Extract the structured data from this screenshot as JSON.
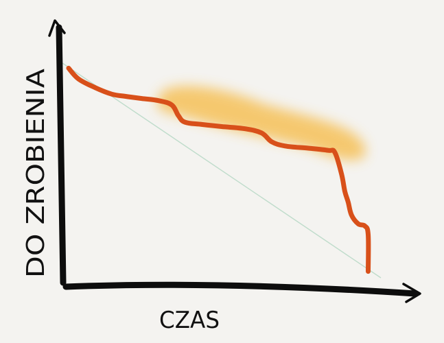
{
  "chart_data": {
    "type": "line",
    "ylabel": "DO ZROBIENIA",
    "xlabel": "CZAS",
    "xlim": [
      0,
      100
    ],
    "ylim": [
      0,
      100
    ],
    "grid": false,
    "series": [
      {
        "style": "ideal-diagonal",
        "color": "#bfdccb",
        "x": [
          0,
          100
        ],
        "y": [
          100,
          0
        ]
      },
      {
        "style": "actual",
        "color": "#d8501a",
        "x": [
          0,
          3,
          8,
          13,
          17,
          22,
          27,
          31,
          33,
          35,
          40,
          46,
          53,
          58,
          61,
          65,
          72,
          78,
          80,
          82,
          83,
          84,
          85,
          87,
          89,
          90,
          90
        ],
        "y": [
          97,
          92,
          88,
          85,
          84,
          83,
          82,
          80,
          75,
          72,
          71,
          70,
          69,
          67,
          63,
          61,
          60,
          59,
          58,
          48,
          40,
          35,
          29,
          25,
          24,
          20,
          3
        ]
      }
    ],
    "highlight": {
      "color": "#f6b83c",
      "x": [
        27,
        90
      ],
      "y": [
        55,
        90
      ]
    }
  }
}
